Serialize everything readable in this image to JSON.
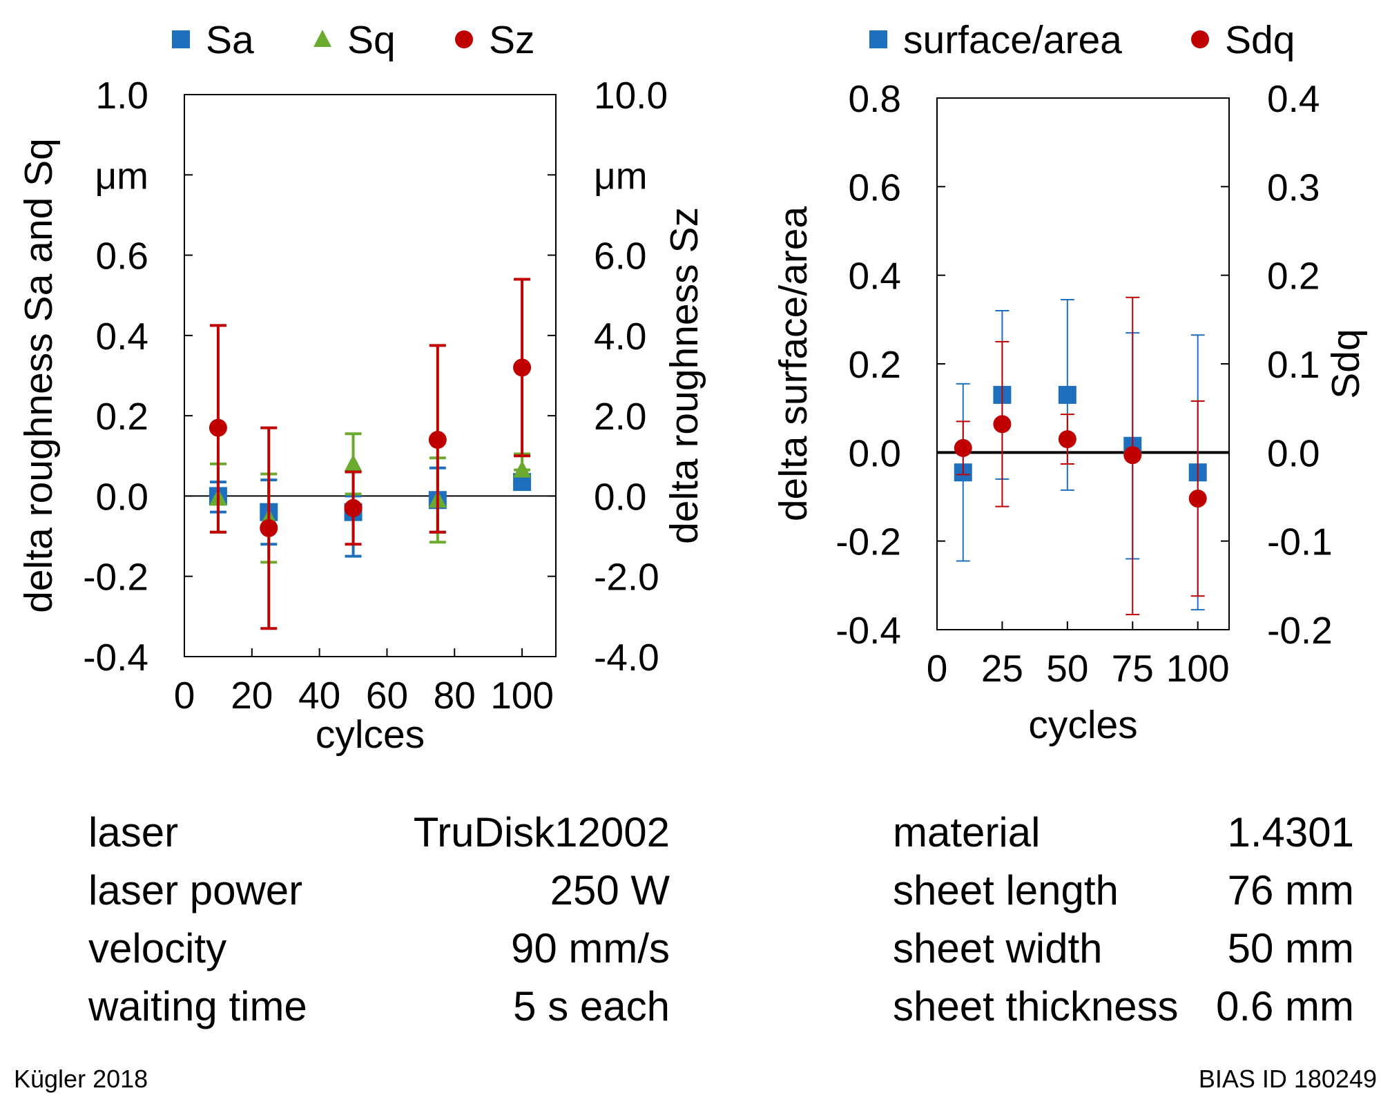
{
  "chart_data": [
    {
      "type": "scatter",
      "xlabel": "cylces",
      "xlim": [
        0,
        110
      ],
      "x_ticks": [
        "0",
        "20",
        "40",
        "60",
        "80",
        "100"
      ],
      "x_tick_values": [
        0,
        20,
        40,
        60,
        80,
        100
      ],
      "ylabel_left": "delta roughness Sa and Sq",
      "ylim_left": [
        -0.4,
        1.0
      ],
      "y_ticks_left": [
        "-0.4",
        "-0.2",
        "0.0",
        "0.2",
        "0.4",
        "0.6",
        "μm",
        "1.0"
      ],
      "y_tick_values_left": [
        -0.4,
        -0.2,
        0.0,
        0.2,
        0.4,
        0.6,
        0.8,
        1.0
      ],
      "ylabel_right": "delta roughness Sz",
      "ylim_right": [
        -4.0,
        10.0
      ],
      "y_ticks_right": [
        "-4.0",
        "-2.0",
        "0.0",
        "2.0",
        "4.0",
        "6.0",
        "μm",
        "10.0"
      ],
      "y_tick_values_right": [
        -4.0,
        -2.0,
        0.0,
        2.0,
        4.0,
        6.0,
        8.0,
        10.0
      ],
      "zero_line": true,
      "legend_position": "top",
      "series": [
        {
          "name": "Sa",
          "axis": "left",
          "marker": "square",
          "color": "#1f6fbf",
          "x": [
            10,
            25,
            50,
            75,
            100
          ],
          "y": [
            0.0,
            -0.04,
            -0.04,
            -0.01,
            0.035
          ],
          "err_low": [
            0.04,
            0.08,
            0.11,
            0.08,
            0.0
          ],
          "err_high": [
            0.035,
            0.08,
            0.04,
            0.08,
            0.0
          ]
        },
        {
          "name": "Sq",
          "axis": "left",
          "marker": "triangle",
          "color": "#6aaa2e",
          "x": [
            10,
            25,
            50,
            75,
            100
          ],
          "y": [
            -0.005,
            -0.055,
            0.08,
            -0.01,
            0.065
          ],
          "err_low": [
            0.085,
            0.11,
            0.075,
            0.105,
            0.0
          ],
          "err_high": [
            0.085,
            0.11,
            0.075,
            0.105,
            0.04
          ]
        },
        {
          "name": "Sz",
          "axis": "right",
          "marker": "circle",
          "color": "#c00000",
          "x": [
            10,
            25,
            50,
            75,
            100
          ],
          "y": [
            1.7,
            -0.8,
            -0.3,
            1.4,
            3.2
          ],
          "err_low": [
            2.6,
            2.5,
            0.9,
            2.3,
            2.2
          ],
          "err_high": [
            2.55,
            2.5,
            0.9,
            2.35,
            2.2
          ]
        }
      ]
    },
    {
      "type": "scatter",
      "xlabel": "cycles",
      "xlim": [
        0,
        112
      ],
      "x_ticks": [
        "0",
        "25",
        "50",
        "75",
        "100"
      ],
      "x_tick_values": [
        0,
        25,
        50,
        75,
        100
      ],
      "ylabel_left": "delta surface/area",
      "ylim_left": [
        -0.4,
        0.8
      ],
      "y_ticks_left": [
        "-0.4",
        "-0.2",
        "0.0",
        "0.2",
        "0.4",
        "0.6",
        "0.8"
      ],
      "y_tick_values_left": [
        -0.4,
        -0.2,
        0.0,
        0.2,
        0.4,
        0.6,
        0.8
      ],
      "ylabel_right": "Sdq",
      "ylim_right": [
        -0.2,
        0.4
      ],
      "y_ticks_right": [
        "-0.2",
        "-0.1",
        "0.0",
        "0.1",
        "0.2",
        "0.3",
        "0.4"
      ],
      "y_tick_values_right": [
        -0.2,
        -0.1,
        0.0,
        0.1,
        0.2,
        0.3,
        0.4
      ],
      "zero_line": true,
      "legend_position": "top",
      "series": [
        {
          "name": "surface/area",
          "axis": "left",
          "marker": "square",
          "color": "#1f6fbf",
          "x": [
            10,
            25,
            50,
            75,
            100
          ],
          "y": [
            -0.045,
            0.13,
            0.13,
            0.015,
            -0.045
          ],
          "err_low": [
            0.2,
            0.19,
            0.215,
            0.255,
            0.31
          ],
          "err_high": [
            0.2,
            0.19,
            0.215,
            0.255,
            0.31
          ]
        },
        {
          "name": "Sdq",
          "axis": "right",
          "marker": "circle",
          "color": "#c00000",
          "x": [
            10,
            25,
            50,
            75,
            100
          ],
          "y": [
            0.005,
            0.032,
            0.015,
            -0.003,
            -0.052
          ],
          "err_low": [
            0.03,
            0.093,
            0.028,
            0.18,
            0.11
          ],
          "err_high": [
            0.03,
            0.093,
            0.028,
            0.178,
            0.11
          ]
        }
      ]
    }
  ],
  "params_left": [
    {
      "label": "laser",
      "value": "TruDisk12002"
    },
    {
      "label": "laser power",
      "value": "250 W"
    },
    {
      "label": "velocity",
      "value": "90 mm/s"
    },
    {
      "label": "waiting time",
      "value": "5 s each"
    }
  ],
  "params_right": [
    {
      "label": "material",
      "value": "1.4301"
    },
    {
      "label": "sheet length",
      "value": "76 mm"
    },
    {
      "label": "sheet width",
      "value": "50 mm"
    },
    {
      "label": "sheet thickness",
      "value": "0.6 mm"
    }
  ],
  "footer": {
    "left": "Kügler 2018",
    "right": "BIAS ID 180249"
  }
}
